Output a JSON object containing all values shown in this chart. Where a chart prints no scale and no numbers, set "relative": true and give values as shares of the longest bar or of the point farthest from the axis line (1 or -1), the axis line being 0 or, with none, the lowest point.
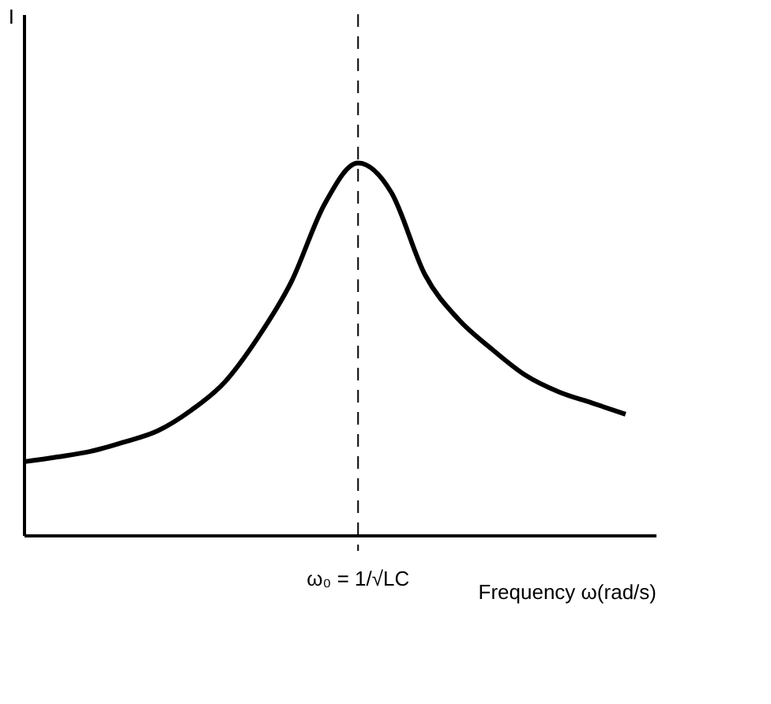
{
  "chart_data": {
    "type": "line",
    "relative": true,
    "xlabel": "Frequency ω(rad/s)",
    "color": "#000000",
    "line_style": "solid",
    "categories": [
      null,
      null,
      null,
      null,
      null,
      null,
      null,
      null,
      null,
      null,
      null,
      null,
      null,
      null,
      null,
      null,
      null,
      null,
      null
    ],
    "values": [
      0.197,
      0.21,
      0.225,
      0.25,
      0.28,
      0.335,
      0.41,
      0.53,
      0.68,
      0.89,
      1.0,
      0.92,
      0.7,
      0.58,
      0.5,
      0.43,
      0.385,
      0.355,
      0.325
    ],
    "annotations": [
      "ω₀ = 1/√LC",
      "I"
    ]
  }
}
